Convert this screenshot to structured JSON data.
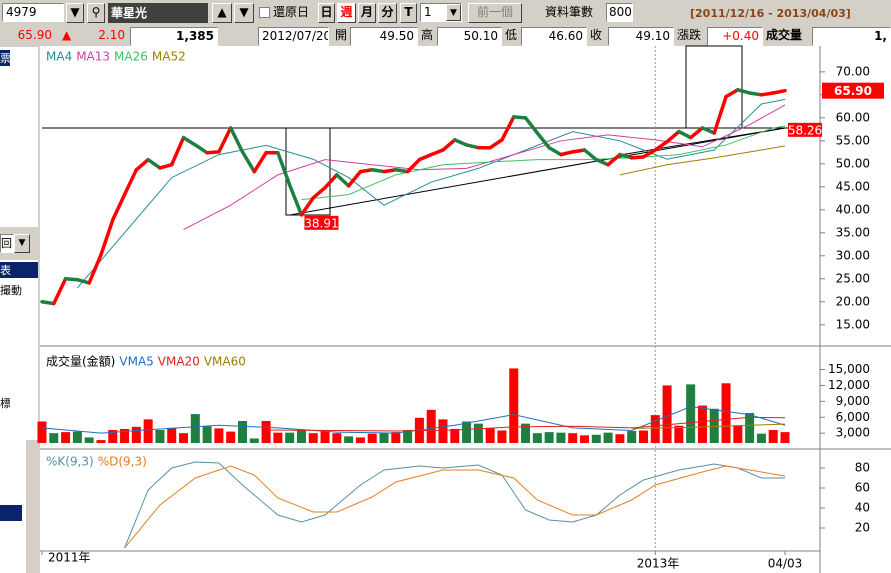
{
  "toolbar": {
    "code": "4979",
    "name": "華星光",
    "restore": "還原日",
    "periods": [
      "日",
      "週",
      "月",
      "分",
      "T"
    ],
    "count_select": "1",
    "prev": "前一個",
    "records_label": "資料筆數",
    "records": "800",
    "range": "[2011/12/16 - 2013/04/03]"
  },
  "quote": {
    "last": "65.90",
    "arrow": "▲",
    "change": "2.10",
    "volume_total": "1,385",
    "date": "2012/07/20",
    "open_label": "開",
    "open": "49.50",
    "high_label": "高",
    "high": "50.10",
    "low_label": "低",
    "low": "46.60",
    "close_label": "收",
    "close": "49.10",
    "diff_label": "漲跌",
    "diff": "+0.40",
    "vol_label": "成交量",
    "vol": "1,"
  },
  "sidebar": [
    "票",
    "回",
    "表",
    "撮動",
    "標"
  ],
  "x_axis": {
    "xlim": [
      0,
      63
    ],
    "labels": [
      {
        "value": 0,
        "label": "2011年"
      },
      {
        "value": 52,
        "label": "2013年"
      },
      {
        "value": 63,
        "label": "04/03"
      }
    ]
  },
  "chart_data": [
    {
      "type": "line",
      "price": {
        "up_color": "#ff0000",
        "down_color": "#1e7f40",
        "values": [
          20.0,
          19.6,
          25.0,
          24.8,
          24.1,
          30.2,
          37.8,
          43.3,
          48.7,
          50.9,
          49.1,
          49.8,
          55.7,
          54.1,
          52.4,
          52.6,
          57.8,
          52.6,
          48.3,
          52.4,
          52.4,
          45.4,
          38.9,
          42.6,
          44.8,
          47.6,
          45.2,
          48.3,
          48.7,
          48.3,
          48.7,
          48.3,
          50.9,
          52.0,
          53.0,
          55.2,
          54.1,
          53.5,
          53.5,
          55.2,
          60.2,
          60.0,
          56.7,
          53.5,
          52.0,
          52.6,
          53.0,
          50.9,
          49.8,
          52.0,
          51.3,
          51.5,
          53.0,
          54.8,
          57.0,
          55.7,
          57.8,
          56.7,
          64.6,
          66.1,
          65.4,
          65.0,
          65.4,
          65.9
        ]
      },
      "series": [
        {
          "name": "MA4",
          "color": "#2a8a9a",
          "x": [
            3,
            7,
            11,
            15,
            19,
            23,
            26,
            29,
            33,
            37,
            41,
            45,
            49,
            53,
            57,
            61,
            63
          ],
          "values": [
            23,
            35,
            47,
            52,
            54,
            51,
            47,
            41,
            46,
            49,
            53,
            57,
            55,
            51,
            53,
            63,
            64
          ]
        },
        {
          "name": "MA13",
          "color": "#d040a0",
          "x": [
            12,
            16,
            20,
            24,
            28,
            32,
            36,
            40,
            44,
            48,
            52,
            56,
            60,
            63
          ],
          "values": [
            35.7,
            41,
            47.6,
            50.9,
            49.8,
            48.7,
            49,
            52,
            55,
            56.3,
            55.2,
            53.7,
            58.5,
            62.8
          ]
        },
        {
          "name": "MA26",
          "color": "#40c060",
          "x": [
            22,
            26,
            30,
            34,
            38,
            42,
            46,
            50,
            54,
            58,
            62,
            63
          ],
          "values": [
            42.2,
            43.3,
            47.6,
            49.8,
            50.4,
            50.9,
            50.9,
            51.3,
            52,
            54.1,
            57.8,
            58.2
          ]
        },
        {
          "name": "MA52",
          "color": "#a08000",
          "x": [
            49,
            53,
            57,
            61,
            63
          ],
          "values": [
            47.6,
            49.8,
            51.3,
            53,
            53.9
          ]
        }
      ],
      "annotations": [
        {
          "value": 65.9,
          "label": "65.90"
        },
        {
          "value": 58.26,
          "label": "58.26",
          "x": 63
        },
        {
          "value": 38.91,
          "label": "38.91",
          "x": 22
        }
      ],
      "ylim": [
        10.6,
        75.4
      ],
      "yticks": [
        {
          "value": 15,
          "label": "15.00"
        },
        {
          "value": 20,
          "label": "20.00"
        },
        {
          "value": 25,
          "label": "25.00"
        },
        {
          "value": 30,
          "label": "30.00"
        },
        {
          "value": 35,
          "label": "35.00"
        },
        {
          "value": 40,
          "label": "40.00"
        },
        {
          "value": 45,
          "label": "45.00"
        },
        {
          "value": 50,
          "label": "50.00"
        },
        {
          "value": 55,
          "label": "55.00"
        },
        {
          "value": 60,
          "label": "60.00"
        },
        {
          "value": 65,
          "label": "65.00"
        },
        {
          "value": 70,
          "label": "70.00"
        }
      ]
    },
    {
      "type": "bar",
      "title": "成交量(金額)",
      "up_color": "#ff0000",
      "down_color": "#1e7f40",
      "values": [
        5200,
        3000,
        3200,
        3300,
        2200,
        1700,
        3600,
        3800,
        4200,
        5600,
        3600,
        4000,
        3000,
        6600,
        4300,
        3900,
        3300,
        5300,
        2000,
        5300,
        3100,
        3100,
        3700,
        3000,
        3500,
        3000,
        2400,
        2200,
        2900,
        3000,
        3200,
        3600,
        5900,
        7400,
        5600,
        3800,
        5200,
        4800,
        3900,
        3500,
        15200,
        4800,
        3000,
        3200,
        3100,
        3000,
        2600,
        2700,
        3100,
        2800,
        3400,
        3500,
        6400,
        12000,
        4400,
        12200,
        8200,
        7600,
        12400,
        4500,
        6800,
        2900,
        3600,
        3200
      ],
      "series": [
        {
          "name": "VMA5",
          "color": "#2070c0",
          "x": [
            0,
            5,
            10,
            15,
            20,
            25,
            30,
            35,
            40,
            45,
            50,
            55,
            60,
            63
          ],
          "values": [
            4000,
            3000,
            3800,
            4500,
            4000,
            3200,
            3000,
            4500,
            6500,
            4000,
            3500,
            8000,
            6500,
            4500
          ]
        },
        {
          "name": "VMA20",
          "color": "#e02020",
          "x": [
            19,
            25,
            30,
            35,
            40,
            45,
            50,
            55,
            60,
            63
          ],
          "values": [
            3600,
            3500,
            3400,
            3600,
            4200,
            4300,
            4000,
            5000,
            6000,
            5900
          ]
        },
        {
          "name": "VMA60",
          "color": "#a08000",
          "x": [
            50,
            55,
            60,
            63
          ],
          "values": [
            3900,
            4100,
            4500,
            4700
          ]
        }
      ],
      "ylim": [
        1150,
        18300
      ],
      "yticks": [
        {
          "value": 3000,
          "label": "3,000"
        },
        {
          "value": 6000,
          "label": "6,000"
        },
        {
          "value": 9000,
          "label": "9,000"
        },
        {
          "value": 12000,
          "label": "12,000"
        },
        {
          "value": 15000,
          "label": "15,000"
        }
      ]
    },
    {
      "type": "line",
      "series": [
        {
          "name": "%K(9,3)",
          "color": "#5a8fa8",
          "x": [
            7,
            9,
            11,
            13,
            15,
            17,
            20,
            22,
            24,
            27,
            29,
            32,
            34,
            37,
            39,
            41,
            43,
            45,
            47,
            49,
            51,
            54,
            57,
            59,
            61,
            63
          ],
          "values": [
            0,
            58,
            80,
            86,
            85,
            63,
            33,
            26,
            33,
            63,
            78,
            82,
            80,
            83,
            73,
            38,
            28,
            26,
            33,
            53,
            68,
            78,
            84,
            80,
            70,
            70
          ]
        },
        {
          "name": "%D(9,3)",
          "color": "#e08020",
          "x": [
            7,
            10,
            13,
            16,
            18,
            20,
            23,
            25,
            28,
            30,
            34,
            37,
            40,
            42,
            45,
            47,
            50,
            52,
            56,
            58,
            61,
            63
          ],
          "values": [
            0,
            43,
            70,
            82,
            73,
            50,
            36,
            36,
            51,
            66,
            78,
            78,
            70,
            48,
            33,
            33,
            48,
            63,
            76,
            82,
            76,
            72
          ]
        }
      ],
      "ylim": [
        0,
        96
      ],
      "yticks": [
        20,
        40,
        60,
        80
      ]
    }
  ]
}
